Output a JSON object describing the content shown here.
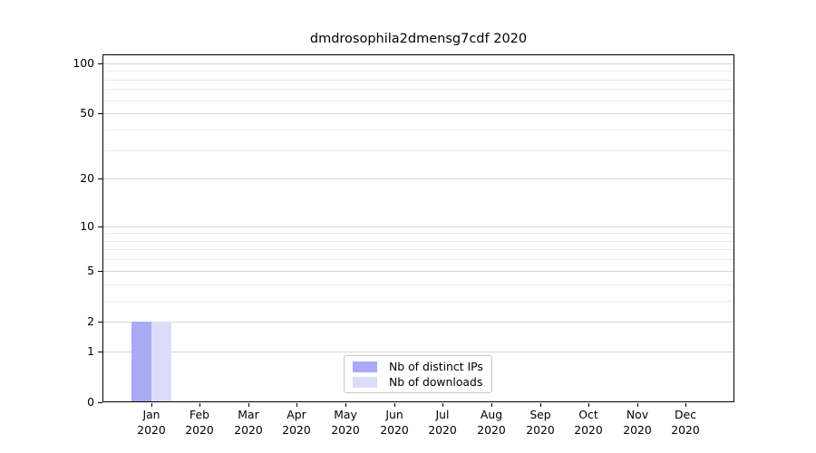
{
  "figure": {
    "background": "#ffffff"
  },
  "chart_data": {
    "type": "bar",
    "title": "dmdrosophila2dmensg7cdf 2020",
    "x_categories": [
      {
        "month": "Jan",
        "year": "2020"
      },
      {
        "month": "Feb",
        "year": "2020"
      },
      {
        "month": "Mar",
        "year": "2020"
      },
      {
        "month": "Apr",
        "year": "2020"
      },
      {
        "month": "May",
        "year": "2020"
      },
      {
        "month": "Jun",
        "year": "2020"
      },
      {
        "month": "Jul",
        "year": "2020"
      },
      {
        "month": "Aug",
        "year": "2020"
      },
      {
        "month": "Sep",
        "year": "2020"
      },
      {
        "month": "Oct",
        "year": "2020"
      },
      {
        "month": "Nov",
        "year": "2020"
      },
      {
        "month": "Dec",
        "year": "2020"
      }
    ],
    "series": [
      {
        "name": "Nb of distinct IPs",
        "color": "#aaaaf7",
        "values": [
          2,
          0,
          0,
          0,
          0,
          0,
          0,
          0,
          0,
          0,
          0,
          0
        ]
      },
      {
        "name": "Nb of downloads",
        "color": "#dcdcfa",
        "values": [
          2,
          0,
          0,
          0,
          0,
          0,
          0,
          0,
          0,
          0,
          0,
          0
        ]
      }
    ],
    "y_scale": "log10(1+x)",
    "y_ticks": [
      0,
      1,
      2,
      5,
      10,
      20,
      50,
      100
    ],
    "y_minor_gridlines": [
      3,
      4,
      6,
      7,
      8,
      9,
      30,
      40,
      60,
      70,
      80,
      90
    ],
    "ylim": [
      0,
      113
    ],
    "grid": {
      "major_color": "#d5d5d5",
      "minor_color": "#ececec"
    },
    "axis_color": "#000000",
    "legend": {
      "position": "lower center"
    }
  }
}
